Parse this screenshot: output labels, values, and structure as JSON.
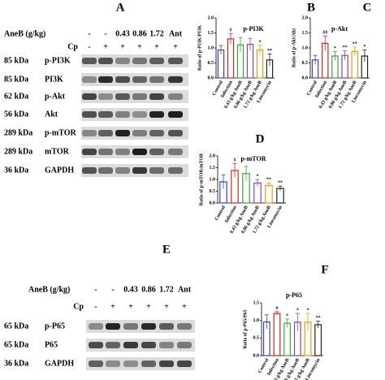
{
  "blots": [
    {
      "panel_label": "A",
      "treatment_label": "AneB (g/kg)",
      "doses": [
        "-",
        "-",
        "0.43",
        "0.86",
        "1.72",
        "Ant"
      ],
      "infection_label": "Cp",
      "infection": [
        "-",
        "+",
        "+",
        "+",
        "+",
        "+"
      ],
      "rows": [
        {
          "size": "85 kDa",
          "protein": "p-PI3K"
        },
        {
          "size": "85 kDa",
          "protein": "PI3K"
        },
        {
          "size": "62 kDa",
          "protein": "p-Akt"
        },
        {
          "size": "56 kDa",
          "protein": "Akt"
        },
        {
          "size": "289 kDa",
          "protein": "p-mTOR"
        },
        {
          "size": "289 kDa",
          "protein": "mTOR"
        },
        {
          "size": "36 kDa",
          "protein": "GAPDH"
        }
      ]
    },
    {
      "panel_label": "E",
      "treatment_label": "AneB (g/kg)",
      "doses": [
        "-",
        "-",
        "0.43",
        "0.86",
        "1.72",
        "Ant"
      ],
      "infection_label": "Cp",
      "infection": [
        "-",
        "+",
        "+",
        "+",
        "+",
        "+"
      ],
      "rows": [
        {
          "size": "65 kDa",
          "protein": "p-P65"
        },
        {
          "size": "65 kDa",
          "protein": "P65"
        },
        {
          "size": "36 kDa",
          "protein": "GAPDH"
        }
      ]
    }
  ],
  "chart_data": [
    {
      "type": "bar",
      "panel_label": "B",
      "title": "p-PI3K",
      "y_label": "Ratio of p-PI3K/PI3K",
      "categories": [
        "Control",
        "Infection",
        "0.43 g/kg AneB",
        "0.86 g/kg AneB",
        "1.72 g/kg AneB",
        "Lincomycin"
      ],
      "values": [
        0.93,
        1.3,
        1.1,
        1.12,
        0.93,
        0.6
      ],
      "errors": [
        0.15,
        0.18,
        0.25,
        0.2,
        0.15,
        0.2
      ],
      "colors": [
        "#3344cc",
        "#dd2222",
        "#33aa33",
        "#8844bb",
        "#ee9911",
        "#222222"
      ],
      "annotations": [
        null,
        "#",
        null,
        null,
        "*",
        "**"
      ],
      "ylim": [
        0,
        2
      ],
      "yticks": [
        {
          "value": 0,
          "label": "0.0"
        },
        {
          "value": 0.5,
          "label": "0.5"
        },
        {
          "value": 1,
          "label": "1.0"
        },
        {
          "value": 1.5,
          "label": "1.5"
        },
        {
          "value": 2,
          "label": "2.0"
        }
      ]
    },
    {
      "type": "bar",
      "panel_label": "C",
      "title": "p-Akt",
      "y_label": "Ratio of p-Akt/Akt",
      "categories": [
        "Control",
        "Infection",
        "0.43 g/kg AneB",
        "0.86 g/kg AneB",
        "1.72 g/kg AneB",
        "Lincomycin"
      ],
      "values": [
        0.6,
        1.15,
        0.73,
        0.75,
        0.88,
        0.73
      ],
      "errors": [
        0.15,
        0.25,
        0.15,
        0.15,
        0.15,
        0.2
      ],
      "colors": [
        "#3344cc",
        "#dd2222",
        "#33aa33",
        "#8844bb",
        "#ee9911",
        "#222222"
      ],
      "annotations": [
        null,
        "##",
        "*",
        "**",
        "**",
        "*"
      ],
      "ylim": [
        0,
        2
      ],
      "yticks": [
        {
          "value": 0,
          "label": "0.0"
        },
        {
          "value": 0.5,
          "label": "0.5"
        },
        {
          "value": 1,
          "label": "1.0"
        },
        {
          "value": 1.5,
          "label": "1.5"
        },
        {
          "value": 2,
          "label": "2.0"
        }
      ]
    },
    {
      "type": "bar",
      "panel_label": "D",
      "title": "p-mTOR",
      "y_label": "Ratio of p-mTOR/mTOR",
      "categories": [
        "Control",
        "Infection",
        "0.43 g/kg AneB",
        "0.86 g/kg AneB",
        "1.72 g/kg AneB",
        "Lincomycin"
      ],
      "values": [
        0.9,
        1.38,
        1.25,
        0.85,
        0.75,
        0.62
      ],
      "errors": [
        0.3,
        0.3,
        0.3,
        0.15,
        0.1,
        0.1
      ],
      "colors": [
        "#3344cc",
        "#dd2222",
        "#33aa33",
        "#8844bb",
        "#ee9911",
        "#222222"
      ],
      "annotations": [
        null,
        "#",
        null,
        "*",
        "**",
        "**"
      ],
      "ylim": [
        0,
        2
      ],
      "yticks": [
        {
          "value": 0,
          "label": "0.0"
        },
        {
          "value": 0.5,
          "label": "0.5"
        },
        {
          "value": 1,
          "label": "1.0"
        },
        {
          "value": 1.5,
          "label": "1.5"
        },
        {
          "value": 2,
          "label": "2.0"
        }
      ]
    },
    {
      "type": "bar",
      "panel_label": "F",
      "title": "p-P65",
      "y_label": "Ratio of p-P65/P65",
      "categories": [
        "Control",
        "Infection",
        "0.43 g/kg AneB",
        "0.86 g/kg AneB",
        "1.72 g/kg AneB",
        "Lincomycin"
      ],
      "values": [
        0.96,
        1.2,
        0.92,
        0.95,
        0.95,
        0.88
      ],
      "errors": [
        0.2,
        0.05,
        0.12,
        0.25,
        0.25,
        0.1
      ],
      "colors": [
        "#3344cc",
        "#dd2222",
        "#33aa33",
        "#8844bb",
        "#ee9911",
        "#222222"
      ],
      "annotations": [
        null,
        "#",
        "*",
        "*",
        "*",
        "**"
      ],
      "ylim": [
        0,
        1.5
      ],
      "yticks": [
        {
          "value": 0,
          "label": "0.0"
        },
        {
          "value": 0.5,
          "label": "0.5"
        },
        {
          "value": 1,
          "label": "1.0"
        },
        {
          "value": 1.5,
          "label": "1.5"
        }
      ]
    }
  ]
}
